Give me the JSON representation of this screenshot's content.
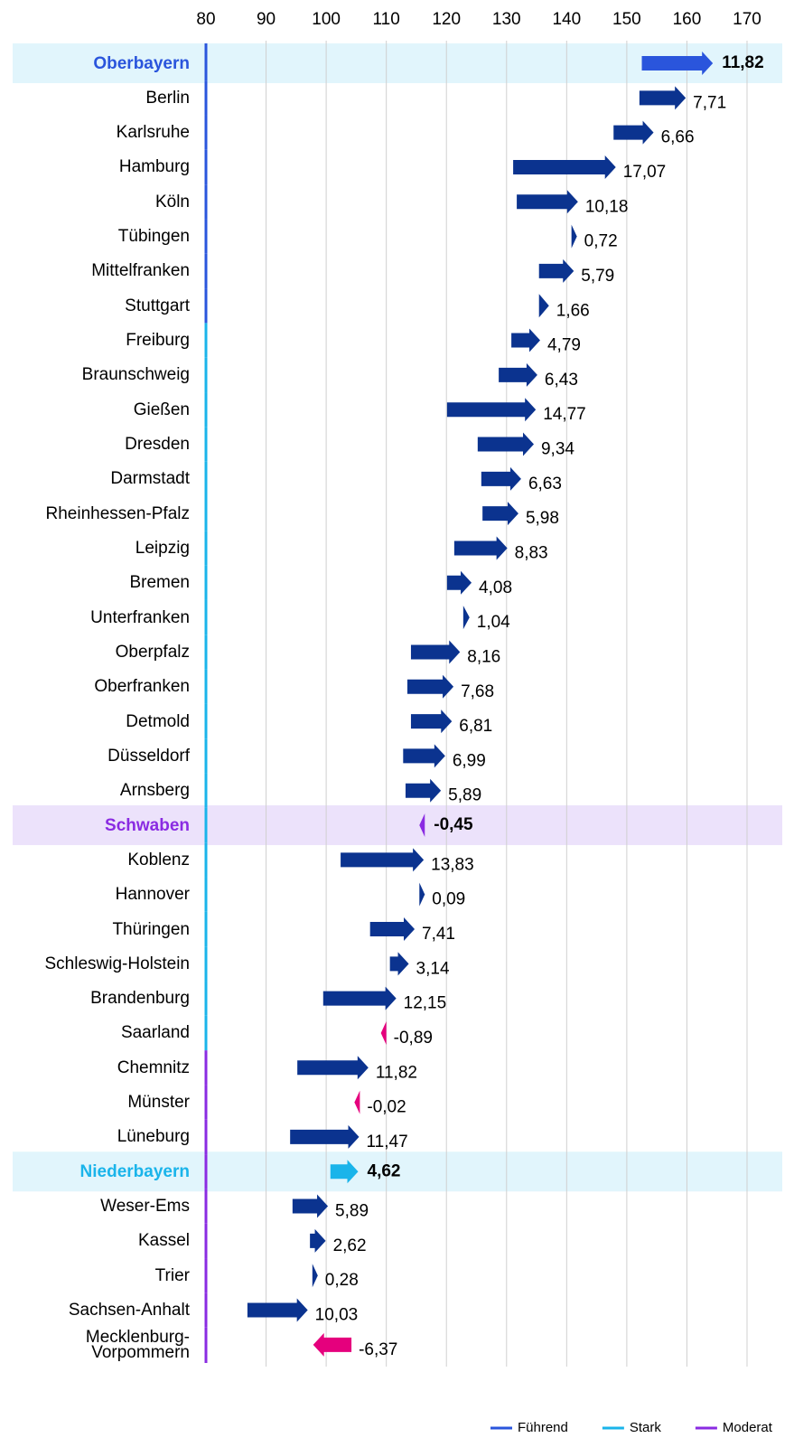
{
  "chart_data": {
    "type": "arrow",
    "categories": [
      "Oberbayern",
      "Berlin",
      "Karlsruhe",
      "Hamburg",
      "Köln",
      "Tübingen",
      "Mittelfranken",
      "Stuttgart",
      "Freiburg",
      "Braunschweig",
      "Gießen",
      "Dresden",
      "Darmstadt",
      "Rheinhessen-Pfalz",
      "Leipzig",
      "Bremen",
      "Unterfranken",
      "Oberpfalz",
      "Oberfranken",
      "Detmold",
      "Düsseldorf",
      "Arnsberg",
      "Schwaben",
      "Koblenz",
      "Hannover",
      "Thüringen",
      "Schleswig-Holstein",
      "Brandenburg",
      "Saarland",
      "Chemnitz",
      "Münster",
      "Lüneburg",
      "Niederbayern",
      "Weser-Ems",
      "Kassel",
      "Trier",
      "Sachsen-Anhalt",
      "Mecklenburg-Vorpommern"
    ],
    "start": [
      152.5,
      152.1,
      147.8,
      131.1,
      131.7,
      140.8,
      135.4,
      135.4,
      130.8,
      128.7,
      120.1,
      125.2,
      125.8,
      126.0,
      121.3,
      120.1,
      122.8,
      114.1,
      113.5,
      114.1,
      112.8,
      113.2,
      116.4,
      102.4,
      115.5,
      107.3,
      110.6,
      99.5,
      110.0,
      95.2,
      105.6,
      94.0,
      100.7,
      94.4,
      97.3,
      97.7,
      86.9,
      104.2
    ],
    "change": [
      11.82,
      7.71,
      6.66,
      17.07,
      10.18,
      0.72,
      5.79,
      1.66,
      4.79,
      6.43,
      14.77,
      9.34,
      6.63,
      5.98,
      8.83,
      4.08,
      1.04,
      8.16,
      7.68,
      6.81,
      6.99,
      5.89,
      -0.45,
      13.83,
      0.09,
      7.41,
      3.14,
      12.15,
      -0.89,
      11.82,
      -0.02,
      11.47,
      4.62,
      5.89,
      2.62,
      0.28,
      10.03,
      -6.37
    ],
    "value_labels": [
      "11,82",
      "7,71",
      "6,66",
      "17,07",
      "10,18",
      "0,72",
      "5,79",
      "1,66",
      "4,79",
      "6,43",
      "14,77",
      "9,34",
      "6,63",
      "5,98",
      "8,83",
      "4,08",
      "1,04",
      "8,16",
      "7,68",
      "6,81",
      "6,99",
      "5,89",
      "-0,45",
      "13,83",
      "0,09",
      "7,41",
      "3,14",
      "12,15",
      "-0,89",
      "11,82",
      "-0,02",
      "11,47",
      "4,62",
      "5,89",
      "2,62",
      "0,28",
      "10,03",
      "-6,37"
    ],
    "color": "#0b338f",
    "negative_color": "#e5007d",
    "point_colors": {
      "0": "#2a55dc",
      "22": "#8a2be2",
      "32": "#1ab4ea"
    },
    "highlighted": {
      "0": "#e1f5fc",
      "22": "#ece2fb",
      "32": "#e1f5fc"
    },
    "category_groups": [
      "Führend",
      "Führend",
      "Führend",
      "Führend",
      "Führend",
      "Führend",
      "Führend",
      "Führend",
      "Stark",
      "Stark",
      "Stark",
      "Stark",
      "Stark",
      "Stark",
      "Stark",
      "Stark",
      "Stark",
      "Stark",
      "Stark",
      "Stark",
      "Stark",
      "Stark",
      "Stark",
      "Stark",
      "Stark",
      "Stark",
      "Stark",
      "Stark",
      "Stark",
      "Moderat",
      "Moderat",
      "Moderat",
      "Moderat",
      "Moderat",
      "Moderat",
      "Moderat",
      "Moderat",
      "Moderat"
    ],
    "legend": [
      {
        "name": "Führend",
        "color": "#2a55dc"
      },
      {
        "name": "Stark",
        "color": "#1ab4ea"
      },
      {
        "name": "Moderat",
        "color": "#8a2be2"
      }
    ],
    "xlim": [
      80,
      170
    ],
    "xticks": [
      80,
      90,
      100,
      110,
      120,
      130,
      140,
      150,
      160,
      170
    ],
    "grid": true
  }
}
